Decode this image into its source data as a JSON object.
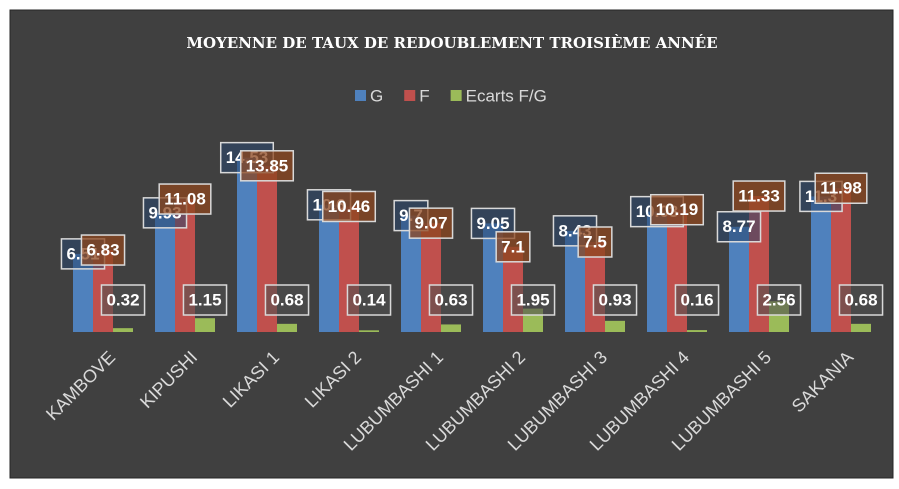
{
  "chart_data": {
    "type": "bar",
    "title": "MOYENNE DE TAUX DE REDOUBLEMENT TROISIÈME ANNÉE",
    "categories": [
      "KAMBOVE",
      "KIPUSHI",
      "LIKASI 1",
      "LIKASI 2",
      "LUBUMBASHI 1",
      "LUBUMBASHI 2",
      "LUBUMBASHI 3",
      "LUBUMBASHI 4",
      "LUBUMBASHI 5",
      "SAKANIA"
    ],
    "series": [
      {
        "name": "G",
        "color": "#4f81bd",
        "values": [
          6.51,
          9.93,
          14.53,
          10.6,
          9.7,
          9.05,
          8.43,
          10.03,
          8.77,
          11.3
        ]
      },
      {
        "name": "F",
        "color": "#c0504d",
        "values": [
          6.83,
          11.08,
          13.85,
          10.46,
          9.07,
          7.1,
          7.5,
          10.19,
          11.33,
          11.98
        ]
      },
      {
        "name": "Ecarts F/G",
        "color": "#9bbb59",
        "values": [
          0.32,
          1.15,
          0.68,
          0.14,
          0.63,
          1.95,
          0.93,
          0.16,
          2.56,
          0.68
        ]
      }
    ],
    "ylim": [
      0,
      16
    ],
    "legend": "top"
  }
}
